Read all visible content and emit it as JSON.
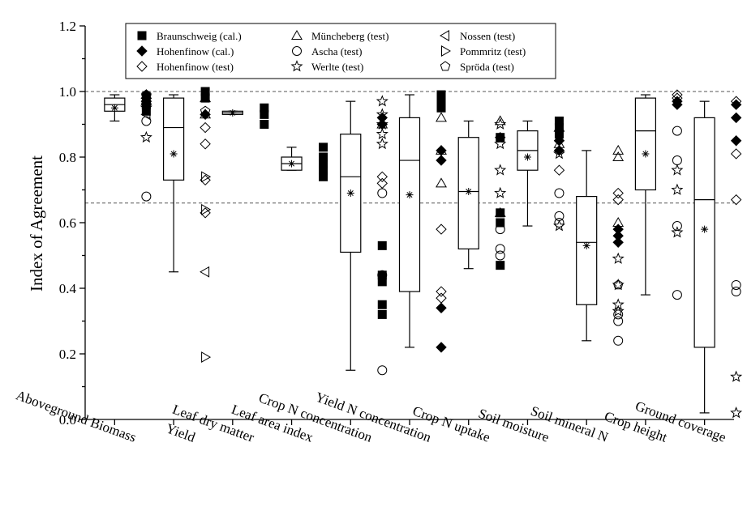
{
  "chart_data": {
    "type": "box",
    "title": "",
    "xlabel": "",
    "ylabel": "Index of Agreement",
    "ylim": [
      0.0,
      1.2
    ],
    "yticks": [
      "0.0",
      "0.2",
      "0.4",
      "0.6",
      "0.8",
      "1.0",
      "1.2"
    ],
    "reference_lines": [
      1.0,
      0.66
    ],
    "grid": false,
    "legend_position": "top",
    "categories": [
      "Aboveground Biomass",
      "Yield",
      "Leaf dry matter",
      "Leaf area index",
      "Crop N concentration",
      "Yield N concentration",
      "Crop N uptake",
      "Soil moisture",
      "Soil mineral N",
      "Crop height",
      "Ground coverage"
    ],
    "boxes": [
      {
        "min": 0.91,
        "q1": 0.94,
        "median": 0.96,
        "q3": 0.98,
        "max": 0.99,
        "mean": 0.95
      },
      {
        "min": 0.45,
        "q1": 0.73,
        "median": 0.89,
        "q3": 0.98,
        "max": 0.99,
        "mean": 0.81
      },
      {
        "min": 0.93,
        "q1": 0.93,
        "median": 0.935,
        "q3": 0.94,
        "max": 0.94,
        "mean": 0.935
      },
      {
        "min": 0.76,
        "q1": 0.76,
        "median": 0.78,
        "q3": 0.8,
        "max": 0.83,
        "mean": 0.78
      },
      {
        "min": 0.15,
        "q1": 0.51,
        "median": 0.74,
        "q3": 0.87,
        "max": 0.97,
        "mean": 0.69
      },
      {
        "min": 0.22,
        "q1": 0.39,
        "median": 0.79,
        "q3": 0.92,
        "max": 0.99,
        "mean": 0.685
      },
      {
        "min": 0.46,
        "q1": 0.52,
        "median": 0.695,
        "q3": 0.86,
        "max": 0.91,
        "mean": 0.695
      },
      {
        "min": 0.59,
        "q1": 0.76,
        "median": 0.82,
        "q3": 0.88,
        "max": 0.91,
        "mean": 0.8
      },
      {
        "min": 0.24,
        "q1": 0.35,
        "median": 0.54,
        "q3": 0.68,
        "max": 0.82,
        "mean": 0.53
      },
      {
        "min": 0.38,
        "q1": 0.7,
        "median": 0.88,
        "q3": 0.98,
        "max": 0.99,
        "mean": 0.81
      },
      {
        "min": 0.02,
        "q1": 0.22,
        "median": 0.67,
        "q3": 0.92,
        "max": 0.97,
        "mean": 0.58
      }
    ],
    "series": [
      {
        "name": "Braunschweig (cal.)",
        "marker": "square",
        "filled": true,
        "points": [
          [
            1,
            0.98
          ],
          [
            1,
            0.96
          ],
          [
            1,
            0.94
          ],
          [
            2,
            1.0
          ],
          [
            2,
            0.98
          ],
          [
            3,
            0.95
          ],
          [
            3,
            0.93
          ],
          [
            3,
            0.9
          ],
          [
            4,
            0.83
          ],
          [
            4,
            0.8
          ],
          [
            4,
            0.78
          ],
          [
            4,
            0.76
          ],
          [
            4,
            0.74
          ],
          [
            5,
            0.53
          ],
          [
            5,
            0.44
          ],
          [
            5,
            0.42
          ],
          [
            5,
            0.35
          ],
          [
            5,
            0.32
          ],
          [
            6,
            0.99
          ],
          [
            6,
            0.97
          ],
          [
            6,
            0.95
          ],
          [
            7,
            0.86
          ],
          [
            7,
            0.63
          ],
          [
            7,
            0.6
          ],
          [
            7,
            0.47
          ],
          [
            8,
            0.91
          ],
          [
            8,
            0.89
          ],
          [
            8,
            0.87
          ]
        ]
      },
      {
        "name": "Hohenfinow (cal.)",
        "marker": "diamond",
        "filled": true,
        "points": [
          [
            1,
            0.99
          ],
          [
            1,
            0.97
          ],
          [
            2,
            0.93
          ],
          [
            5,
            0.92
          ],
          [
            5,
            0.9
          ],
          [
            6,
            0.82
          ],
          [
            6,
            0.79
          ],
          [
            6,
            0.34
          ],
          [
            6,
            0.22
          ],
          [
            7,
            0.86
          ],
          [
            8,
            0.85
          ],
          [
            8,
            0.82
          ],
          [
            9,
            0.58
          ],
          [
            9,
            0.56
          ],
          [
            9,
            0.54
          ],
          [
            10,
            0.97
          ],
          [
            10,
            0.96
          ],
          [
            11,
            0.96
          ],
          [
            11,
            0.92
          ],
          [
            11,
            0.85
          ]
        ]
      },
      {
        "name": "Hohenfinow (test)",
        "marker": "diamond",
        "filled": false,
        "points": [
          [
            1,
            0.97
          ],
          [
            2,
            0.89
          ],
          [
            2,
            0.84
          ],
          [
            2,
            0.73
          ],
          [
            2,
            0.63
          ],
          [
            5,
            0.74
          ],
          [
            5,
            0.72
          ],
          [
            6,
            0.58
          ],
          [
            6,
            0.39
          ],
          [
            6,
            0.37
          ],
          [
            8,
            0.76
          ],
          [
            9,
            0.69
          ],
          [
            9,
            0.67
          ],
          [
            10,
            0.99
          ],
          [
            10,
            0.98
          ],
          [
            11,
            0.97
          ],
          [
            11,
            0.81
          ],
          [
            11,
            0.67
          ]
        ]
      },
      {
        "name": "Müncheberg (test)",
        "marker": "triangle-up",
        "filled": false,
        "points": [
          [
            1,
            0.99
          ],
          [
            1,
            0.97
          ],
          [
            2,
            0.98
          ],
          [
            2,
            0.93
          ],
          [
            5,
            0.9
          ],
          [
            6,
            0.92
          ],
          [
            6,
            0.82
          ],
          [
            6,
            0.72
          ],
          [
            7,
            0.91
          ],
          [
            7,
            0.63
          ],
          [
            8,
            0.89
          ],
          [
            8,
            0.84
          ],
          [
            9,
            0.82
          ],
          [
            9,
            0.8
          ],
          [
            9,
            0.6
          ]
        ]
      },
      {
        "name": "Ascha (test)",
        "marker": "circle",
        "filled": false,
        "points": [
          [
            1,
            0.91
          ],
          [
            1,
            0.68
          ],
          [
            5,
            0.69
          ],
          [
            5,
            0.44
          ],
          [
            5,
            0.15
          ],
          [
            7,
            0.58
          ],
          [
            7,
            0.52
          ],
          [
            7,
            0.5
          ],
          [
            8,
            0.69
          ],
          [
            8,
            0.62
          ],
          [
            8,
            0.6
          ],
          [
            9,
            0.32
          ],
          [
            9,
            0.3
          ],
          [
            9,
            0.24
          ],
          [
            10,
            0.88
          ],
          [
            10,
            0.79
          ],
          [
            10,
            0.59
          ],
          [
            10,
            0.38
          ],
          [
            11,
            0.41
          ],
          [
            11,
            0.39
          ]
        ]
      },
      {
        "name": "Werlte (test)",
        "marker": "star",
        "filled": false,
        "points": [
          [
            1,
            0.95
          ],
          [
            1,
            0.86
          ],
          [
            5,
            0.97
          ],
          [
            5,
            0.93
          ],
          [
            5,
            0.9
          ],
          [
            5,
            0.87
          ],
          [
            5,
            0.84
          ],
          [
            7,
            0.9
          ],
          [
            7,
            0.84
          ],
          [
            7,
            0.76
          ],
          [
            7,
            0.69
          ],
          [
            8,
            0.81
          ],
          [
            8,
            0.59
          ],
          [
            9,
            0.49
          ],
          [
            9,
            0.41
          ],
          [
            9,
            0.35
          ],
          [
            9,
            0.33
          ],
          [
            10,
            0.76
          ],
          [
            10,
            0.7
          ],
          [
            10,
            0.57
          ],
          [
            11,
            0.13
          ],
          [
            11,
            0.02
          ]
        ]
      },
      {
        "name": "Nossen (test)",
        "marker": "triangle-left",
        "filled": false,
        "points": [
          [
            1,
            0.93
          ],
          [
            2,
            0.45
          ]
        ]
      },
      {
        "name": "Pommritz (test)",
        "marker": "triangle-right",
        "filled": false,
        "points": [
          [
            2,
            0.74
          ],
          [
            2,
            0.64
          ],
          [
            2,
            0.19
          ]
        ]
      },
      {
        "name": "Spröda (test)",
        "marker": "pentagon",
        "filled": false,
        "points": [
          [
            1,
            0.99
          ],
          [
            1,
            0.96
          ],
          [
            2,
            0.94
          ],
          [
            9,
            0.41
          ]
        ]
      }
    ]
  }
}
